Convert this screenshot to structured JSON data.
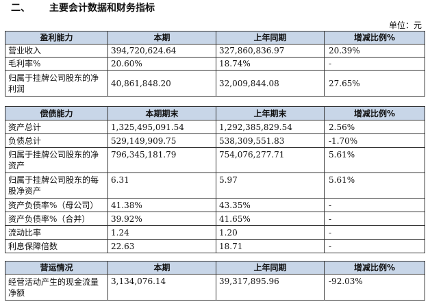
{
  "heading": {
    "num": "二、",
    "title": "主要会计数据和财务指标"
  },
  "unit_label": "单位：元",
  "profit": {
    "headers": [
      "盈利能力",
      "本期",
      "上年同期",
      "增减比例%"
    ],
    "rows": [
      [
        "营业收入",
        "394,720,624.64",
        "327,860,836.97",
        "20.39%"
      ],
      [
        "毛利率%",
        "20.60%",
        "18.74%",
        "-"
      ],
      [
        "归属于挂牌公司股东的净利润",
        "40,861,848.20",
        "32,009,844.08",
        "27.65%"
      ]
    ]
  },
  "solvency": {
    "headers": [
      "偿债能力",
      "本期期末",
      "上年期末",
      "增减比例%"
    ],
    "rows": [
      [
        "资产总计",
        "1,325,495,091.54",
        "1,292,385,829.54",
        "2.56%"
      ],
      [
        "负债总计",
        "529,149,909.75",
        "538,309,551.83",
        "-1.70%"
      ],
      [
        "归属于挂牌公司股东的净资产",
        "796,345,181.79",
        "754,076,277.71",
        "5.61%"
      ],
      [
        "归属于挂牌公司股东的每股净资产",
        "6.31",
        "5.97",
        "5.61%"
      ],
      [
        "资产负债率%（母公司）",
        "41.38%",
        "43.35%",
        "-"
      ],
      [
        "资产负债率%（合并）",
        "39.92%",
        "41.65%",
        "-"
      ],
      [
        "流动比率",
        "1.24",
        "1.20",
        "-"
      ],
      [
        "利息保障倍数",
        "22.63",
        "18.71",
        "-"
      ]
    ]
  },
  "operations": {
    "headers": [
      "营运情况",
      "本期",
      "上年同期",
      "增减比例%"
    ],
    "rows": [
      [
        "经营活动产生的现金流量净额",
        "3,134,076.14",
        "39,317,895.96",
        "-92.03%"
      ]
    ]
  }
}
